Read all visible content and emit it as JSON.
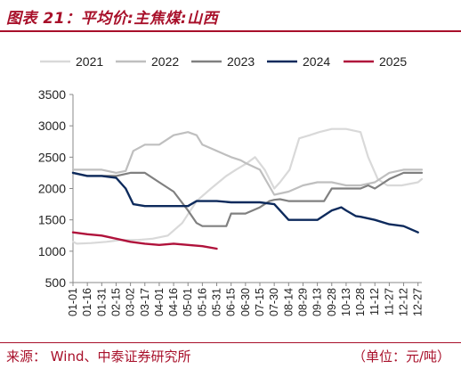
{
  "header": {
    "title": "图表 21：平均价:主焦煤:山西"
  },
  "footer": {
    "source": "来源：   Wind、中泰证券研究所",
    "unit": "（单位：元/吨）"
  },
  "colors": {
    "accent": "#a8102a"
  },
  "chart_data": {
    "type": "line",
    "xlabel": "",
    "ylabel": "",
    "ylim": [
      500,
      3500
    ],
    "yticks": [
      500,
      1000,
      1500,
      2000,
      2500,
      3000,
      3500
    ],
    "x_ticks": [
      "01-01",
      "01-16",
      "01-31",
      "02-15",
      "03-02",
      "03-17",
      "04-01",
      "04-16",
      "05-01",
      "05-16",
      "05-31",
      "06-15",
      "06-30",
      "07-15",
      "07-30",
      "08-14",
      "08-29",
      "09-13",
      "09-28",
      "10-13",
      "10-28",
      "11-12",
      "11-27",
      "12-12",
      "12-27"
    ],
    "legend_position": "top",
    "grid": false,
    "series": [
      {
        "name": "2021",
        "color": "#d9d9d9",
        "x": [
          "01-01",
          "01-05",
          "01-20",
          "02-05",
          "02-20",
          "03-10",
          "03-25",
          "04-10",
          "04-25",
          "05-10",
          "05-25",
          "06-10",
          "06-20",
          "07-01",
          "07-10",
          "07-20",
          "07-30",
          "08-05",
          "08-15",
          "08-25",
          "09-05",
          "09-15",
          "09-28",
          "10-13",
          "10-28",
          "11-05",
          "11-15",
          "11-25",
          "12-10",
          "12-27",
          "12-31"
        ],
        "values": [
          1150,
          1120,
          1130,
          1150,
          1180,
          1180,
          1200,
          1250,
          1450,
          1800,
          2000,
          2200,
          2300,
          2400,
          2500,
          2300,
          2000,
          2100,
          2300,
          2800,
          2850,
          2900,
          2950,
          2950,
          2900,
          2500,
          2150,
          2050,
          2050,
          2100,
          2150
        ]
      },
      {
        "name": "2022",
        "color": "#bfbfbf",
        "x": [
          "01-01",
          "01-16",
          "01-31",
          "02-15",
          "02-25",
          "03-05",
          "03-17",
          "04-01",
          "04-16",
          "05-01",
          "05-10",
          "05-16",
          "05-31",
          "06-15",
          "06-25",
          "07-01",
          "07-15",
          "07-30",
          "08-14",
          "08-29",
          "09-13",
          "09-28",
          "10-13",
          "10-28",
          "11-12",
          "11-27",
          "12-12",
          "12-31"
        ],
        "values": [
          2300,
          2300,
          2300,
          2250,
          2280,
          2600,
          2700,
          2700,
          2850,
          2900,
          2850,
          2700,
          2600,
          2500,
          2450,
          2400,
          2300,
          1900,
          1950,
          2050,
          2100,
          2100,
          2050,
          2050,
          2100,
          2250,
          2300,
          2300
        ]
      },
      {
        "name": "2023",
        "color": "#808080",
        "x": [
          "01-01",
          "01-16",
          "01-31",
          "02-15",
          "03-02",
          "03-17",
          "04-01",
          "04-16",
          "05-01",
          "05-10",
          "05-16",
          "05-31",
          "06-10",
          "06-15",
          "06-30",
          "07-15",
          "07-25",
          "07-30",
          "08-05",
          "08-14",
          "08-29",
          "09-13",
          "09-20",
          "09-28",
          "10-13",
          "10-28",
          "11-05",
          "11-12",
          "11-27",
          "12-12",
          "12-31"
        ],
        "values": [
          2250,
          2200,
          2200,
          2200,
          2250,
          2250,
          2100,
          1950,
          1650,
          1450,
          1400,
          1400,
          1400,
          1600,
          1600,
          1700,
          1800,
          1820,
          1830,
          1800,
          1800,
          1800,
          1800,
          2000,
          2000,
          2000,
          2050,
          2000,
          2150,
          2250,
          2250
        ]
      },
      {
        "name": "2024",
        "color": "#0d2a5c",
        "x": [
          "01-01",
          "01-16",
          "01-31",
          "02-15",
          "02-25",
          "03-05",
          "03-17",
          "04-01",
          "04-16",
          "05-01",
          "05-10",
          "05-16",
          "05-31",
          "06-15",
          "06-30",
          "07-15",
          "07-30",
          "08-05",
          "08-14",
          "08-29",
          "09-13",
          "09-28",
          "10-08",
          "10-13",
          "10-23",
          "10-28",
          "11-12",
          "11-27",
          "12-12",
          "12-27"
        ],
        "values": [
          2250,
          2200,
          2200,
          2170,
          2000,
          1750,
          1720,
          1720,
          1720,
          1720,
          1800,
          1800,
          1800,
          1780,
          1780,
          1780,
          1750,
          1650,
          1500,
          1500,
          1500,
          1650,
          1700,
          1650,
          1560,
          1550,
          1500,
          1430,
          1400,
          1300
        ]
      },
      {
        "name": "2025",
        "color": "#b0123b",
        "x": [
          "01-01",
          "01-16",
          "01-31",
          "02-15",
          "03-02",
          "03-17",
          "04-01",
          "04-16",
          "05-01",
          "05-16",
          "05-31"
        ],
        "values": [
          1300,
          1270,
          1250,
          1200,
          1150,
          1120,
          1100,
          1120,
          1100,
          1080,
          1040
        ]
      }
    ]
  }
}
